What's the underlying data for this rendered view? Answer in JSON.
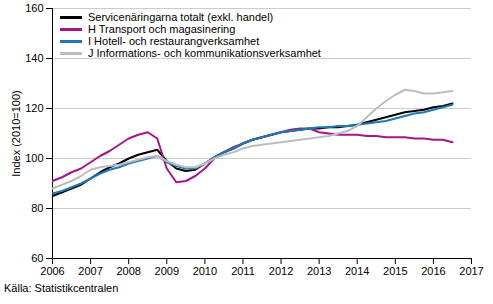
{
  "chart_data": {
    "type": "line",
    "ylabel": "Index (2010=100)",
    "caption": "Källa: Statistikcentralen",
    "x": [
      2006.0,
      2006.25,
      2006.5,
      2006.75,
      2007.0,
      2007.25,
      2007.5,
      2007.75,
      2008.0,
      2008.25,
      2008.5,
      2008.75,
      2009.0,
      2009.25,
      2009.5,
      2009.75,
      2010.0,
      2010.25,
      2010.5,
      2010.75,
      2011.0,
      2011.25,
      2011.5,
      2011.75,
      2012.0,
      2012.25,
      2012.5,
      2012.75,
      2013.0,
      2013.25,
      2013.5,
      2013.75,
      2014.0,
      2014.25,
      2014.5,
      2014.75,
      2015.0,
      2015.25,
      2015.5,
      2015.75,
      2016.0,
      2016.25,
      2016.5
    ],
    "series": [
      {
        "name": "Servicenäringarna totalt (exkl. handel)",
        "color": "#000000",
        "values": [
          85,
          86.5,
          88,
          89.5,
          92,
          94.5,
          96.5,
          98,
          100,
          101.5,
          102.5,
          103.5,
          99,
          96,
          95,
          95.5,
          98,
          100.5,
          102.5,
          104,
          106,
          107.5,
          108.5,
          109.5,
          110.5,
          111,
          111.5,
          112,
          112,
          112.5,
          112.5,
          113,
          113.5,
          114.5,
          115.5,
          116.5,
          117.5,
          118.5,
          119,
          119.5,
          120.5,
          121,
          122
        ]
      },
      {
        "name": "H Transport och magasinering",
        "color": "#a6158c",
        "values": [
          91,
          92.5,
          94.5,
          96,
          98.5,
          101,
          103,
          105.5,
          108,
          109.5,
          110.5,
          108,
          96,
          90.5,
          91,
          93,
          96,
          100,
          102.5,
          104.5,
          106,
          107.5,
          108.5,
          109.5,
          110.5,
          111.5,
          112,
          112,
          110.5,
          110,
          109.5,
          109.5,
          109.5,
          109,
          109,
          108.5,
          108.5,
          108.5,
          108,
          108,
          107.5,
          107.5,
          106.5
        ]
      },
      {
        "name": "I Hotell- och restaurangverksamhet",
        "color": "#1b7ab5",
        "values": [
          86,
          87,
          88.5,
          90,
          92,
          94,
          95.5,
          96.5,
          98,
          99,
          100,
          101,
          98.5,
          97,
          96,
          96,
          98,
          100.5,
          102.5,
          104,
          106,
          107.5,
          108.5,
          109.5,
          110.5,
          111,
          111.5,
          112,
          112.5,
          112.5,
          113,
          113,
          113.5,
          114,
          114.5,
          115,
          116,
          117,
          118,
          118.5,
          119.5,
          120.5,
          121.5
        ]
      },
      {
        "name": "J Informations- och kommunikationsverksamhet",
        "color": "#bdbdbd",
        "values": [
          88,
          89.5,
          91,
          93,
          95.5,
          96.5,
          97,
          97.5,
          98.5,
          99.5,
          100.5,
          101,
          99,
          97.5,
          96.5,
          96.5,
          98,
          100,
          101.5,
          102.5,
          104,
          105,
          105.5,
          106,
          106.5,
          107,
          107.5,
          108,
          108.5,
          109,
          110,
          111,
          113,
          116.5,
          120,
          123,
          125.5,
          127.5,
          127,
          126,
          126,
          126.5,
          127
        ]
      }
    ],
    "xlim": [
      2006,
      2017
    ],
    "xticks": [
      2006,
      2007,
      2008,
      2009,
      2010,
      2011,
      2012,
      2013,
      2014,
      2015,
      2016,
      2017
    ],
    "ylim": [
      60,
      160
    ],
    "yticks": [
      60,
      80,
      100,
      120,
      140,
      160
    ],
    "grid": true,
    "legend": "top-left"
  }
}
